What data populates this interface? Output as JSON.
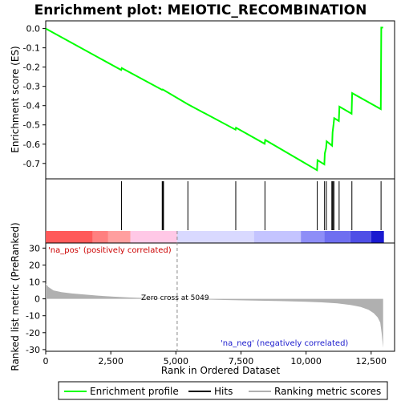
{
  "chart_data": {
    "type": "line",
    "title": "Enrichment plot: MEIOTIC_RECOMBINATION",
    "es_panel": {
      "ylabel": "Enrichment score (ES)",
      "ylim": [
        -0.78,
        0.04
      ],
      "yticks": [
        0.0,
        -0.1,
        -0.2,
        -0.3,
        -0.4,
        -0.5,
        -0.6,
        -0.7
      ],
      "ytick_labels": [
        "0.0",
        "-0.1",
        "-0.2",
        "-0.3",
        "-0.4",
        "-0.5",
        "-0.6",
        "-0.7"
      ],
      "series": [
        {
          "name": "Enrichment profile",
          "color": "#00ff00",
          "x": [
            0,
            2900,
            2920,
            4470,
            4490,
            4520,
            5460,
            7290,
            7310,
            8410,
            8430,
            10420,
            10440,
            10700,
            10720,
            10770,
            10790,
            11000,
            11020,
            11060,
            11080,
            11260,
            11280,
            11750,
            11770,
            12870,
            12890,
            12960
          ],
          "y": [
            0.0,
            -0.215,
            -0.205,
            -0.318,
            -0.316,
            -0.318,
            -0.393,
            -0.525,
            -0.515,
            -0.598,
            -0.578,
            -0.735,
            -0.683,
            -0.705,
            -0.648,
            -0.62,
            -0.585,
            -0.608,
            -0.538,
            -0.494,
            -0.465,
            -0.48,
            -0.405,
            -0.442,
            -0.335,
            -0.418,
            0.005,
            0.005
          ]
        }
      ]
    },
    "hits": {
      "name": "Hits",
      "positions": [
        2910,
        4475,
        4500,
        4525,
        5460,
        7300,
        8420,
        10430,
        10710,
        10780,
        10990,
        11010,
        11050,
        11070,
        11270,
        11760,
        12880
      ]
    },
    "ranking_bar": {
      "segments": [
        {
          "from": 0,
          "to": 1800,
          "color": "#ff5a5a"
        },
        {
          "from": 1800,
          "to": 2400,
          "color": "#ff8080"
        },
        {
          "from": 2400,
          "to": 3250,
          "color": "#ff9f9f"
        },
        {
          "from": 3250,
          "to": 5049,
          "color": "#ffc8e6"
        },
        {
          "from": 5049,
          "to": 8000,
          "color": "#d9d9ff"
        },
        {
          "from": 8000,
          "to": 9800,
          "color": "#c4c4ff"
        },
        {
          "from": 9800,
          "to": 10700,
          "color": "#8e8ef7"
        },
        {
          "from": 10700,
          "to": 11700,
          "color": "#6f6ff0"
        },
        {
          "from": 11700,
          "to": 12500,
          "color": "#4f4fe6"
        },
        {
          "from": 12500,
          "to": 12990,
          "color": "#1a1ad0"
        }
      ]
    },
    "metric_panel": {
      "ylabel": "Ranked list metric (PreRanked)",
      "xlabel": "Rank in Ordered Dataset",
      "ylim": [
        -31,
        33
      ],
      "yticks": [
        30,
        20,
        10,
        0,
        -10,
        -20,
        -30
      ],
      "ytick_labels": [
        "30",
        "20",
        "10",
        "0",
        "-10",
        "-20",
        "-30"
      ],
      "xlim": [
        0,
        13400
      ],
      "xticks": [
        0,
        2500,
        5000,
        7500,
        10000,
        12500
      ],
      "xtick_labels": [
        "0",
        "2,500",
        "5,000",
        "7,500",
        "10,000",
        "12,500"
      ],
      "series": [
        {
          "name": "Ranking metric scores",
          "color": "#b0b0b0",
          "x": [
            0,
            100,
            300,
            600,
            1000,
            1500,
            2000,
            2600,
            3200,
            4000,
            5049,
            6000,
            7000,
            8000,
            9000,
            10000,
            10600,
            11200,
            11700,
            12100,
            12400,
            12600,
            12750,
            12850,
            12900,
            12960
          ],
          "y": [
            9,
            7,
            5,
            4,
            3.2,
            2.5,
            1.9,
            1.3,
            0.8,
            0.35,
            0,
            -0.35,
            -0.7,
            -1.0,
            -1.3,
            -1.7,
            -2.1,
            -2.7,
            -3.6,
            -4.8,
            -6.5,
            -8.5,
            -11,
            -14,
            -20,
            -29
          ]
        }
      ],
      "annotations": {
        "pos_label": "'na_pos' (positively correlated)",
        "neg_label": "'na_neg' (negatively correlated)",
        "zero_cross_label": "Zero cross at 5049",
        "zero_cross": 5049
      }
    },
    "legend": {
      "placement": "bottom",
      "entries": [
        {
          "label": "Enrichment profile",
          "color": "#00ff00"
        },
        {
          "label": "Hits",
          "color": "#000000"
        },
        {
          "label": "Ranking metric scores",
          "color": "#b0b0b0"
        }
      ]
    }
  }
}
